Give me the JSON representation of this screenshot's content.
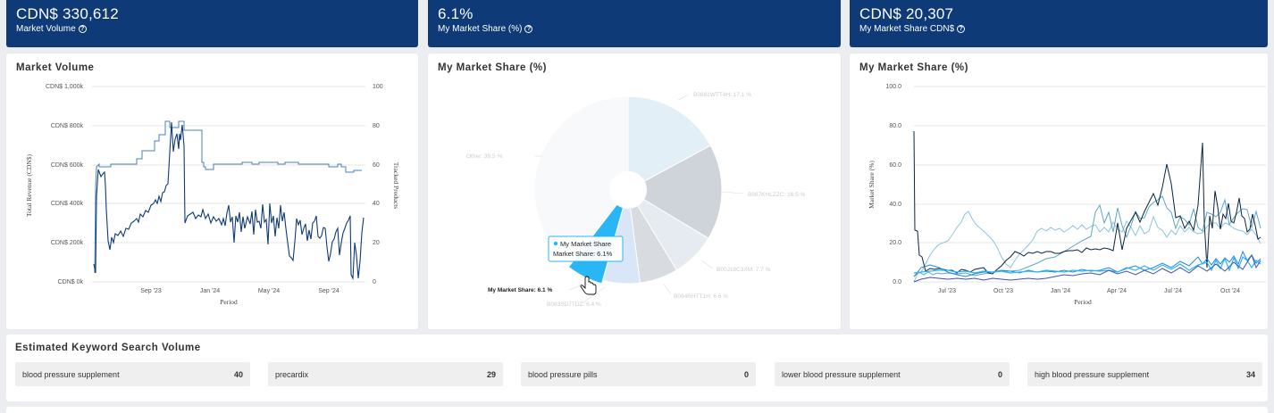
{
  "kpis": [
    {
      "value": "CDN$ 330,612",
      "label": "Market Volume"
    },
    {
      "value": "6.1%",
      "label": "My Market Share (%)"
    },
    {
      "value": "CDN$ 20,307",
      "label": "My Market Share CDN$"
    }
  ],
  "help_glyph": "?",
  "colors": {
    "navy": "#0e3a78",
    "pie_highlight": "#29b6f6"
  },
  "market_volume": {
    "title": "Market Volume",
    "y_left_ticks": [
      "CDN$ 1,000k",
      "CDN$ 800k",
      "CDN$ 600k",
      "CDN$ 400k",
      "CDN$ 200k",
      "CDN$ 0k"
    ],
    "y_right_ticks": [
      "100",
      "80",
      "60",
      "40",
      "20",
      "0"
    ],
    "x_ticks": [
      "Sep '23",
      "Jan '24",
      "May '24",
      "Sep '24"
    ],
    "xlabel": "Period",
    "ylabel_left": "Total Revenue (CDN$)",
    "ylabel_right": "Tracked Products"
  },
  "pie": {
    "title": "My Market Share (%)",
    "slices": [
      {
        "label": "B0881WTT4H: 17.1 %",
        "value": 17.1,
        "color": "#e3eff7"
      },
      {
        "label": "B087KHLZZC: 16.5 %",
        "value": 16.5,
        "color": "#cfd4da"
      },
      {
        "label": "B00J18C3XM: 7.7 %",
        "value": 7.7,
        "color": "#e6ebf1"
      },
      {
        "label": "B084RHTT1H: 6.6 %",
        "value": 6.6,
        "color": "#d8dbe0"
      },
      {
        "label": "B083SD7TDZ: 6.4 %",
        "value": 6.4,
        "color": "#d9e6f7"
      },
      {
        "label": "My Market Share: 6.1 %",
        "value": 6.1,
        "color": "#29b6f6"
      },
      {
        "label": "Other: 39.5 %",
        "value": 39.5,
        "color": "#f8f9fa"
      }
    ],
    "tooltip_series": "My Market Share",
    "tooltip_value": "Market Share: 6.1%"
  },
  "share_trend": {
    "title": "My Market Share (%)",
    "y_ticks": [
      "100.0",
      "80.0",
      "60.0",
      "40.0",
      "20.0",
      "0.0"
    ],
    "x_ticks": [
      "Jul '23",
      "Oct '23",
      "Jan '24",
      "Apr '24",
      "Jul '24",
      "Oct '24"
    ],
    "xlabel": "Period",
    "ylabel": "Market Share (%)"
  },
  "keywords": {
    "title": "Estimated Keyword Search Volume",
    "items": [
      {
        "term": "blood pressure supplement",
        "volume": "40"
      },
      {
        "term": "precardix",
        "volume": "29"
      },
      {
        "term": "blood pressure pills",
        "volume": "0"
      },
      {
        "term": "lower blood pressure supplement",
        "volume": "0"
      },
      {
        "term": "high blood pressure supplement",
        "volume": "34"
      }
    ]
  }
}
